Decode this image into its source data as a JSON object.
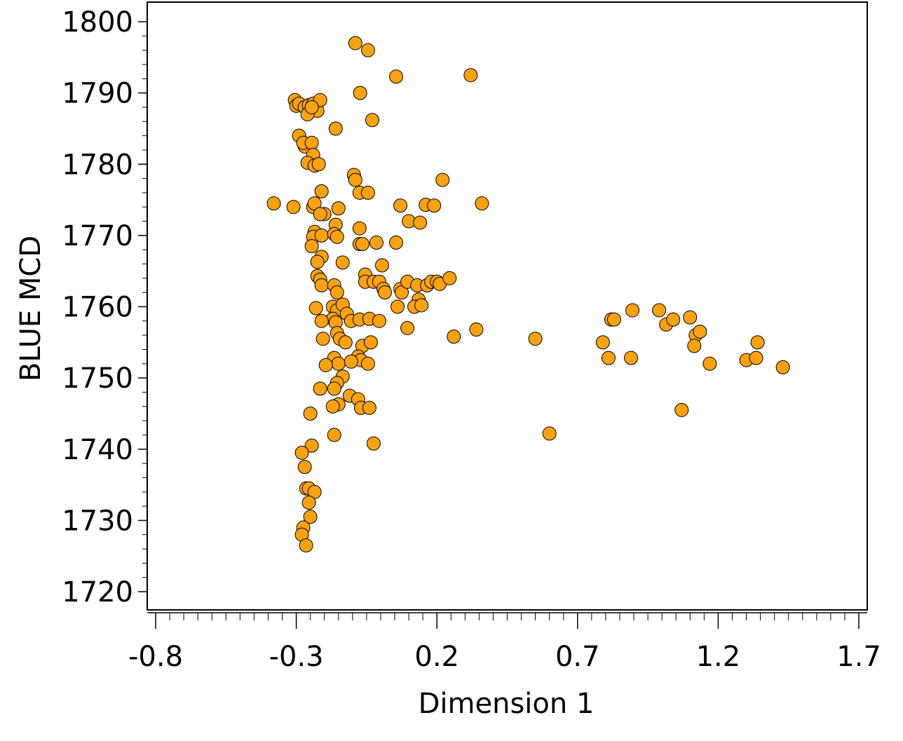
{
  "chart_data": {
    "type": "scatter",
    "title": "",
    "xlabel": "Dimension 1",
    "ylabel": "BLUE MCD",
    "xlim": [
      -0.8,
      1.7
    ],
    "ylim": [
      1720,
      1800
    ],
    "xticks": [
      "-0.8",
      "-0.3",
      "0.2",
      "0.7",
      "1.2",
      "1.7"
    ],
    "yticks": [
      "1720",
      "1730",
      "1740",
      "1750",
      "1760",
      "1770",
      "1780",
      "1790",
      "1800"
    ],
    "grid": false,
    "legend": "none",
    "marker_color": "#F7A113",
    "marker_edge": "#000000",
    "series": [
      {
        "points": [
          [
            -0.09,
            1797.0
          ],
          [
            -0.045,
            1796.0
          ],
          [
            0.32,
            1792.5
          ],
          [
            0.055,
            1792.3
          ],
          [
            -0.073,
            1790.0
          ],
          [
            -0.03,
            1786.2
          ],
          [
            -0.305,
            1789.0
          ],
          [
            -0.3,
            1788.2
          ],
          [
            -0.29,
            1788.5
          ],
          [
            -0.27,
            1788.0
          ],
          [
            -0.255,
            1788.3
          ],
          [
            -0.24,
            1788.5
          ],
          [
            -0.225,
            1787.5
          ],
          [
            -0.215,
            1789.0
          ],
          [
            -0.26,
            1787.0
          ],
          [
            -0.245,
            1788.0
          ],
          [
            -0.16,
            1785.0
          ],
          [
            -0.29,
            1784.0
          ],
          [
            -0.27,
            1782.5
          ],
          [
            -0.275,
            1783.0
          ],
          [
            -0.245,
            1783.0
          ],
          [
            -0.24,
            1781.3
          ],
          [
            -0.26,
            1780.2
          ],
          [
            -0.235,
            1779.8
          ],
          [
            -0.22,
            1780.0
          ],
          [
            -0.095,
            1778.5
          ],
          [
            -0.09,
            1777.8
          ],
          [
            0.22,
            1777.8
          ],
          [
            -0.075,
            1776.0
          ],
          [
            -0.045,
            1776.0
          ],
          [
            -0.21,
            1776.2
          ],
          [
            -0.38,
            1774.5
          ],
          [
            -0.31,
            1774.0
          ],
          [
            -0.24,
            1774.0
          ],
          [
            -0.235,
            1774.5
          ],
          [
            -0.2,
            1773.0
          ],
          [
            -0.15,
            1773.8
          ],
          [
            0.07,
            1774.2
          ],
          [
            0.16,
            1774.3
          ],
          [
            0.19,
            1774.2
          ],
          [
            0.36,
            1774.5
          ],
          [
            -0.215,
            1773.0
          ],
          [
            -0.16,
            1771.5
          ],
          [
            -0.075,
            1771.0
          ],
          [
            0.1,
            1772.0
          ],
          [
            0.14,
            1771.8
          ],
          [
            -0.235,
            1770.5
          ],
          [
            -0.24,
            1769.8
          ],
          [
            -0.21,
            1770.0
          ],
          [
            -0.165,
            1770.2
          ],
          [
            -0.155,
            1769.8
          ],
          [
            -0.245,
            1768.5
          ],
          [
            -0.075,
            1768.8
          ],
          [
            -0.065,
            1768.8
          ],
          [
            -0.015,
            1769.0
          ],
          [
            0.055,
            1769.0
          ],
          [
            -0.21,
            1767.0
          ],
          [
            -0.225,
            1766.3
          ],
          [
            -0.135,
            1766.2
          ],
          [
            0.005,
            1765.8
          ],
          [
            -0.055,
            1764.5
          ],
          [
            -0.225,
            1764.3
          ],
          [
            -0.215,
            1763.8
          ],
          [
            -0.21,
            1763.0
          ],
          [
            -0.165,
            1763.0
          ],
          [
            -0.055,
            1763.5
          ],
          [
            -0.025,
            1763.5
          ],
          [
            -0.005,
            1763.5
          ],
          [
            0.01,
            1762.5
          ],
          [
            0.015,
            1762.0
          ],
          [
            0.07,
            1762.5
          ],
          [
            0.075,
            1762.0
          ],
          [
            0.095,
            1763.5
          ],
          [
            0.13,
            1763.0
          ],
          [
            0.135,
            1761.0
          ],
          [
            0.165,
            1763.0
          ],
          [
            0.18,
            1763.5
          ],
          [
            0.2,
            1763.5
          ],
          [
            0.21,
            1763.2
          ],
          [
            0.245,
            1764.0
          ],
          [
            -0.155,
            1762.0
          ],
          [
            -0.23,
            1759.8
          ],
          [
            -0.17,
            1760.0
          ],
          [
            -0.155,
            1759.5
          ],
          [
            -0.135,
            1760.3
          ],
          [
            -0.12,
            1759.0
          ],
          [
            -0.17,
            1758.3
          ],
          [
            -0.21,
            1758.0
          ],
          [
            -0.16,
            1757.8
          ],
          [
            -0.105,
            1758.0
          ],
          [
            -0.075,
            1758.2
          ],
          [
            -0.04,
            1758.3
          ],
          [
            -0.005,
            1758.0
          ],
          [
            0.06,
            1760.0
          ],
          [
            0.12,
            1760.0
          ],
          [
            0.145,
            1760.2
          ],
          [
            0.095,
            1757.0
          ],
          [
            -0.155,
            1756.3
          ],
          [
            -0.145,
            1755.5
          ],
          [
            -0.125,
            1755.0
          ],
          [
            -0.205,
            1755.5
          ],
          [
            -0.065,
            1754.5
          ],
          [
            -0.035,
            1755.0
          ],
          [
            -0.08,
            1753.0
          ],
          [
            -0.07,
            1752.5
          ],
          [
            -0.045,
            1752.0
          ],
          [
            -0.165,
            1752.8
          ],
          [
            -0.15,
            1752.0
          ],
          [
            -0.105,
            1752.3
          ],
          [
            -0.195,
            1751.8
          ],
          [
            -0.135,
            1750.2
          ],
          [
            -0.155,
            1749.3
          ],
          [
            -0.165,
            1748.5
          ],
          [
            -0.215,
            1748.5
          ],
          [
            -0.11,
            1747.5
          ],
          [
            -0.08,
            1747.0
          ],
          [
            -0.07,
            1745.8
          ],
          [
            -0.04,
            1745.8
          ],
          [
            -0.15,
            1746.3
          ],
          [
            -0.17,
            1746.0
          ],
          [
            -0.25,
            1745.0
          ],
          [
            -0.165,
            1742.0
          ],
          [
            -0.025,
            1740.8
          ],
          [
            -0.245,
            1740.5
          ],
          [
            -0.28,
            1739.5
          ],
          [
            -0.27,
            1737.5
          ],
          [
            -0.265,
            1734.5
          ],
          [
            -0.255,
            1734.5
          ],
          [
            -0.235,
            1734.0
          ],
          [
            -0.255,
            1732.5
          ],
          [
            -0.25,
            1730.5
          ],
          [
            -0.275,
            1729.0
          ],
          [
            -0.28,
            1728.0
          ],
          [
            -0.265,
            1726.5
          ],
          [
            0.26,
            1755.8
          ],
          [
            0.34,
            1756.8
          ],
          [
            0.55,
            1755.5
          ],
          [
            0.6,
            1742.2
          ],
          [
            0.79,
            1755.0
          ],
          [
            0.81,
            1752.8
          ],
          [
            0.82,
            1758.2
          ],
          [
            0.83,
            1758.2
          ],
          [
            0.895,
            1759.5
          ],
          [
            0.89,
            1752.8
          ],
          [
            0.99,
            1759.5
          ],
          [
            1.015,
            1757.5
          ],
          [
            1.04,
            1758.2
          ],
          [
            1.1,
            1758.5
          ],
          [
            1.07,
            1745.5
          ],
          [
            1.12,
            1756.0
          ],
          [
            1.135,
            1756.5
          ],
          [
            1.115,
            1754.5
          ],
          [
            1.17,
            1752.0
          ],
          [
            1.3,
            1752.5
          ],
          [
            1.335,
            1752.8
          ],
          [
            1.34,
            1755.0
          ],
          [
            1.43,
            1751.5
          ]
        ]
      }
    ]
  }
}
